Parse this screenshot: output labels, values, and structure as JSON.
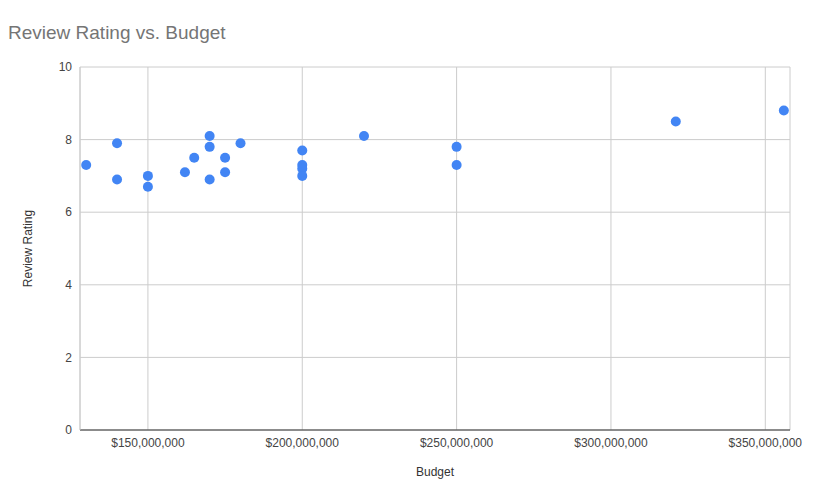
{
  "chart_data": {
    "type": "scatter",
    "title": "Review Rating vs. Budget",
    "x_label": "Budget",
    "y_label": "Review Rating",
    "x": [
      130000000,
      140000000,
      140000000,
      150000000,
      150000000,
      162000000,
      165000000,
      170000000,
      170000000,
      170000000,
      175000000,
      175000000,
      180000000,
      200000000,
      200000000,
      200000000,
      200000000,
      220000000,
      250000000,
      250000000,
      321000000,
      356000000
    ],
    "values": [
      7.3,
      7.9,
      6.9,
      7.0,
      6.7,
      7.1,
      7.5,
      8.1,
      7.8,
      6.9,
      7.5,
      7.1,
      7.9,
      7.7,
      7.3,
      7.2,
      7.0,
      8.1,
      7.8,
      7.3,
      8.5,
      8.8
    ],
    "color": "#4285f4",
    "xlim": [
      128000000,
      358000000
    ],
    "xticks": [
      {
        "value": 150000000,
        "label": "$150,000,000"
      },
      {
        "value": 200000000,
        "label": "$200,000,000"
      },
      {
        "value": 250000000,
        "label": "$250,000,000"
      },
      {
        "value": 300000000,
        "label": "$300,000,000"
      },
      {
        "value": 350000000,
        "label": "$350,000,000"
      }
    ],
    "ylim": [
      0,
      10
    ],
    "yticks": [
      0,
      2,
      4,
      6,
      8,
      10
    ],
    "grid": true
  }
}
